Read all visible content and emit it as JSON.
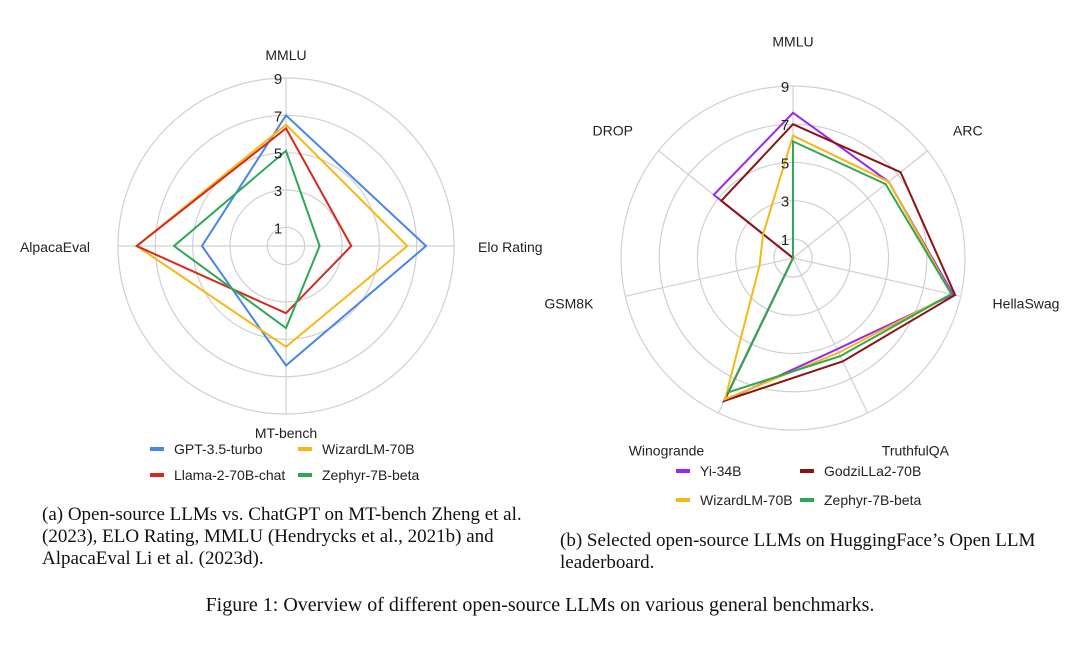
{
  "colors": {
    "grid": "#d0d0d0",
    "text": "#222222"
  },
  "captions": {
    "a": "(a) Open-source LLMs vs. ChatGPT on MT-bench Zheng et al. (2023), ELO Rating, MMLU (Hendrycks et al., 2021b) and AlpacaEval Li et al. (2023d).",
    "b": "(b) Selected open-source LLMs on HuggingFace’s Open LLM leaderboard.",
    "figure": "Figure 1: Overview of different open-source LLMs on various general benchmarks."
  },
  "chart_data": [
    {
      "type": "radar",
      "axes": [
        "MMLU",
        "Elo Rating",
        "MT-bench",
        "AlpacaEval"
      ],
      "ticks": [
        "1",
        "3",
        "5",
        "7",
        "9"
      ],
      "rmax": 9,
      "grid": true,
      "legend": "bottom",
      "series": [
        {
          "name": "GPT-3.5-turbo",
          "color": "#4a86e8",
          "values": [
            7,
            7.5,
            6.4,
            4.5
          ]
        },
        {
          "name": "WizardLM-70B",
          "color": "#f6b818",
          "values": [
            6.5,
            6.5,
            5.4,
            8.0
          ]
        },
        {
          "name": "Llama-2-70B-chat",
          "color": "#d62a1e",
          "values": [
            6.3,
            3.5,
            3.6,
            8.0
          ]
        },
        {
          "name": "Zephyr-7B-beta",
          "color": "#2ea855",
          "values": [
            5.1,
            1.8,
            4.4,
            6.0
          ]
        }
      ]
    },
    {
      "type": "radar",
      "axes": [
        "MMLU",
        "ARC",
        "HellaSwag",
        "TruthfulQA",
        "Winogrande",
        "GSM8K",
        "DROP"
      ],
      "ticks": [
        "1",
        "3",
        "5",
        "7",
        "9"
      ],
      "rmax": 9,
      "grid": true,
      "legend": "bottom",
      "series": [
        {
          "name": "Yi-34B",
          "color": "#9b27f0",
          "values": [
            7.6,
            6.4,
            8.6,
            5.3,
            8.3,
            0.0,
            5.3
          ]
        },
        {
          "name": "GodziLLa2-70B",
          "color": "#8b1515",
          "values": [
            7.0,
            7.2,
            8.7,
            6.0,
            8.3,
            0.0,
            4.8
          ]
        },
        {
          "name": "WizardLM-70B",
          "color": "#f6b818",
          "values": [
            6.4,
            6.4,
            8.5,
            5.5,
            8.2,
            1.8,
            2.0
          ]
        },
        {
          "name": "Zephyr-7B-beta",
          "color": "#2ea855",
          "values": [
            6.1,
            6.2,
            8.5,
            5.7,
            7.8,
            0.0,
            0.0
          ]
        }
      ]
    }
  ]
}
